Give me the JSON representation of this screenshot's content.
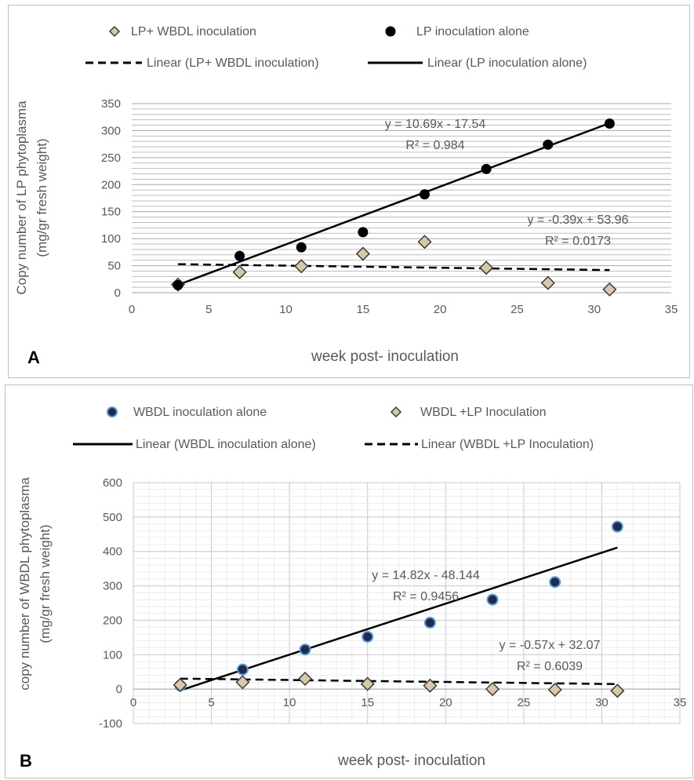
{
  "chart_data": [
    {
      "panel_label": "A",
      "type": "scatter",
      "xlabel": "week post- inoculation",
      "ylabel": [
        "Copy number of LP phytoplasma",
        "(mg/gr fresh weight)"
      ],
      "xlim": [
        0,
        35
      ],
      "ylim": [
        0,
        350
      ],
      "x_ticks": [
        0,
        5,
        10,
        15,
        20,
        25,
        30,
        35
      ],
      "y_ticks": [
        0,
        50,
        100,
        150,
        200,
        250,
        300,
        350
      ],
      "grid": "dense horizontal lines",
      "legend_position": "top",
      "series": [
        {
          "name": "LP+ WBDL inoculation",
          "marker": "diamond",
          "color": "#d6c9a8",
          "x": [
            3,
            7,
            11,
            15,
            19,
            23,
            27,
            31
          ],
          "y": [
            15,
            38,
            49,
            72,
            94,
            46,
            18,
            6
          ]
        },
        {
          "name": "LP  inoculation alone",
          "marker": "circle",
          "color": "#000000",
          "x": [
            3,
            7,
            11,
            15,
            19,
            23,
            27,
            31
          ],
          "y": [
            14,
            68,
            84,
            112,
            182,
            229,
            274,
            313
          ]
        }
      ],
      "trendlines": [
        {
          "name": "Linear (LP+ WBDL inoculation)",
          "style": "dashed",
          "slope": -0.39,
          "intercept": 53.96,
          "x_range": [
            3,
            31
          ],
          "equation": "y = -0.39x + 53.96",
          "r2": "R² = 0.0173"
        },
        {
          "name": "Linear (LP  inoculation alone)",
          "style": "solid",
          "slope": 10.69,
          "intercept": -17.54,
          "x_range": [
            3,
            31
          ],
          "equation": "y = 10.69x - 17.54",
          "r2": "R² = 0.984"
        }
      ]
    },
    {
      "panel_label": "B",
      "type": "scatter",
      "xlabel": "week post- inoculation",
      "ylabel": [
        "copy number of WBDL phytoplasma",
        "(mg/gr fresh weight)"
      ],
      "xlim": [
        0,
        35
      ],
      "ylim": [
        -100,
        600
      ],
      "x_ticks": [
        0,
        5,
        10,
        15,
        20,
        25,
        30,
        35
      ],
      "y_ticks": [
        -100,
        0,
        100,
        200,
        300,
        400,
        500,
        600
      ],
      "grid": "major and minor grid",
      "legend_position": "top",
      "series": [
        {
          "name": "WBDL inoculation alone",
          "marker": "circle",
          "color": "#1f2a4d",
          "x": [
            3,
            7,
            11,
            15,
            19,
            23,
            27,
            31
          ],
          "y": [
            10,
            57,
            115,
            152,
            193,
            260,
            311,
            472
          ]
        },
        {
          "name": "WBDL +LP Inoculation",
          "marker": "diamond",
          "color": "#d6c9a8",
          "x": [
            3,
            7,
            11,
            15,
            19,
            23,
            27,
            31
          ],
          "y": [
            12,
            20,
            30,
            15,
            10,
            0,
            -2,
            -5
          ]
        }
      ],
      "trendlines": [
        {
          "name": "Linear (WBDL inoculation alone)",
          "style": "solid",
          "slope": 14.82,
          "intercept": -48.144,
          "x_range": [
            3,
            31
          ],
          "equation": "y = 14.82x - 48.144",
          "r2": "R² = 0.9456"
        },
        {
          "name": "Linear (WBDL +LP Inoculation)",
          "style": "dashed",
          "slope": -0.57,
          "intercept": 32.07,
          "x_range": [
            3,
            31
          ],
          "equation": "y = -0.57x + 32.07",
          "r2": "R² = 0.6039"
        }
      ]
    }
  ]
}
